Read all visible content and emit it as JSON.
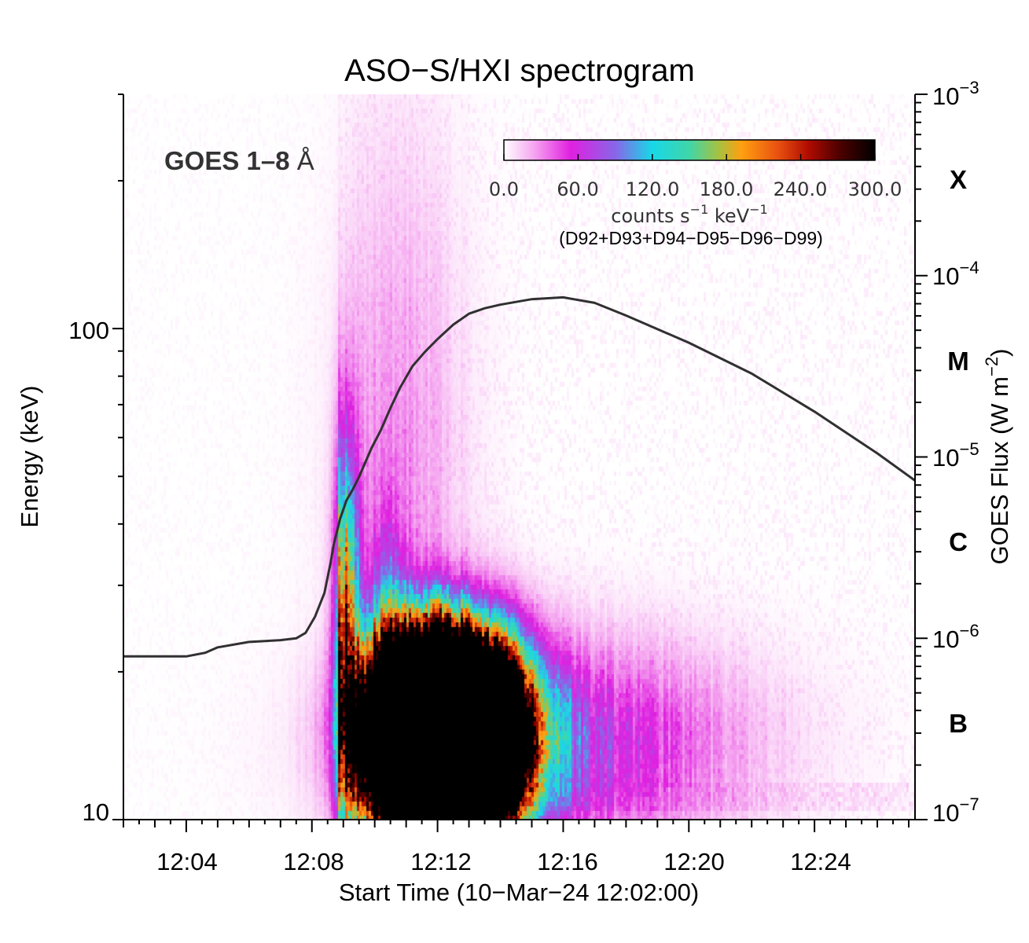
{
  "chart_data": {
    "type": "heatmap",
    "title": "ASO−S/HXI spectrogram",
    "xlabel": "Start Time (10−Mar−24 12:02:00)",
    "ylabel": "Energy (keV)",
    "y2label_main": "GOES Flux (W m",
    "y2label_sup": "−2",
    "y2label_end": ")",
    "x_range_min": [
      0,
      25.2
    ],
    "x_tick_minutes": [
      2,
      6,
      10,
      14,
      18,
      22
    ],
    "x_tick_labels": [
      "12:04",
      "12:08",
      "12:12",
      "12:16",
      "12:20",
      "12:24"
    ],
    "y_range_keV": [
      10,
      300
    ],
    "y_scale": "log",
    "y_tick_values": [
      10,
      100
    ],
    "y_tick_labels": [
      "10",
      "100"
    ],
    "y2_range_flux": [
      1e-07,
      0.001
    ],
    "y2_tick_exponents": [
      -7,
      -6,
      -5,
      -4,
      -3
    ],
    "y2_tick_base": "10",
    "y2_tick_sups": [
      "−7",
      "−6",
      "−5",
      "−4",
      "−3"
    ],
    "goes_classes": [
      {
        "label": "B",
        "log_flux": -6.5
      },
      {
        "label": "C",
        "log_flux": -5.5
      },
      {
        "label": "M",
        "log_flux": -4.5
      },
      {
        "label": "X",
        "log_flux": -3.5
      }
    ],
    "goes_label_bold": "GOES 1–8",
    "goes_label_unit": "Å",
    "goes_curve": {
      "name": "GOES 1–8 Å",
      "color": "#303030",
      "minutes": [
        0,
        1.0,
        2.0,
        2.6,
        3.0,
        4.0,
        5.0,
        5.5,
        5.8,
        6.1,
        6.4,
        6.6,
        6.7,
        6.8,
        6.9,
        7.1,
        7.3,
        7.5,
        7.7,
        7.9,
        8.2,
        8.5,
        8.8,
        9.2,
        9.6,
        10.0,
        10.5,
        11.0,
        11.5,
        12.0,
        13.0,
        14.0,
        15.0,
        16.0,
        18.0,
        20.0,
        22.0,
        24.0,
        25.2
      ],
      "log_flux": [
        -6.1,
        -6.1,
        -6.1,
        -6.08,
        -6.05,
        -6.02,
        -6.01,
        -6.0,
        -5.97,
        -5.88,
        -5.75,
        -5.58,
        -5.48,
        -5.41,
        -5.34,
        -5.24,
        -5.18,
        -5.11,
        -5.03,
        -4.95,
        -4.85,
        -4.73,
        -4.62,
        -4.5,
        -4.42,
        -4.35,
        -4.27,
        -4.21,
        -4.18,
        -4.16,
        -4.13,
        -4.12,
        -4.15,
        -4.22,
        -4.37,
        -4.54,
        -4.75,
        -4.98,
        -5.13
      ]
    },
    "spectrogram_sources": [
      {
        "name": "main",
        "t_min": 10.2,
        "log_e": 1.17,
        "sigma_t": 1.45,
        "sigma_loge": 0.12,
        "peak": 1700
      },
      {
        "name": "early-spike",
        "t_min": 7.05,
        "log_e": 1.36,
        "sigma_t": 0.28,
        "sigma_loge": 0.26,
        "peak": 240
      },
      {
        "name": "shoulder",
        "t_min": 8.4,
        "log_e": 1.25,
        "sigma_t": 0.4,
        "sigma_loge": 0.2,
        "peak": 120
      },
      {
        "name": "tail",
        "t_min": 13.5,
        "log_e": 1.15,
        "sigma_t": 4.0,
        "sigma_loge": 0.14,
        "peak": 70
      },
      {
        "name": "high-energy",
        "t_min": 8.6,
        "log_e": 1.7,
        "sigma_t": 1.5,
        "sigma_loge": 0.45,
        "peak": 28
      }
    ],
    "colorbar": {
      "min": 0,
      "max": 300,
      "tick_values": [
        0,
        60,
        120,
        180,
        240,
        300
      ],
      "tick_labels": [
        "0.0",
        "60.0",
        "120.0",
        "180.0",
        "240.0",
        "300.0"
      ],
      "unit_main": "counts  s",
      "unit_sup1": "−1",
      "unit_mid": "  keV",
      "unit_sup2": "−1",
      "detectors": "(D92+D93+D94−D95−D96−D99)",
      "stops": [
        {
          "v": 0.0,
          "c": "#ffffff"
        },
        {
          "v": 0.08,
          "c": "#f5a6f0"
        },
        {
          "v": 0.18,
          "c": "#e020e0"
        },
        {
          "v": 0.3,
          "c": "#8866e8"
        },
        {
          "v": 0.4,
          "c": "#18d8e8"
        },
        {
          "v": 0.5,
          "c": "#40d6a8"
        },
        {
          "v": 0.58,
          "c": "#a8c040"
        },
        {
          "v": 0.64,
          "c": "#ffa010"
        },
        {
          "v": 0.74,
          "c": "#e85010"
        },
        {
          "v": 0.82,
          "c": "#b00c00"
        },
        {
          "v": 0.9,
          "c": "#520000"
        },
        {
          "v": 1.0,
          "c": "#000000"
        }
      ]
    }
  }
}
